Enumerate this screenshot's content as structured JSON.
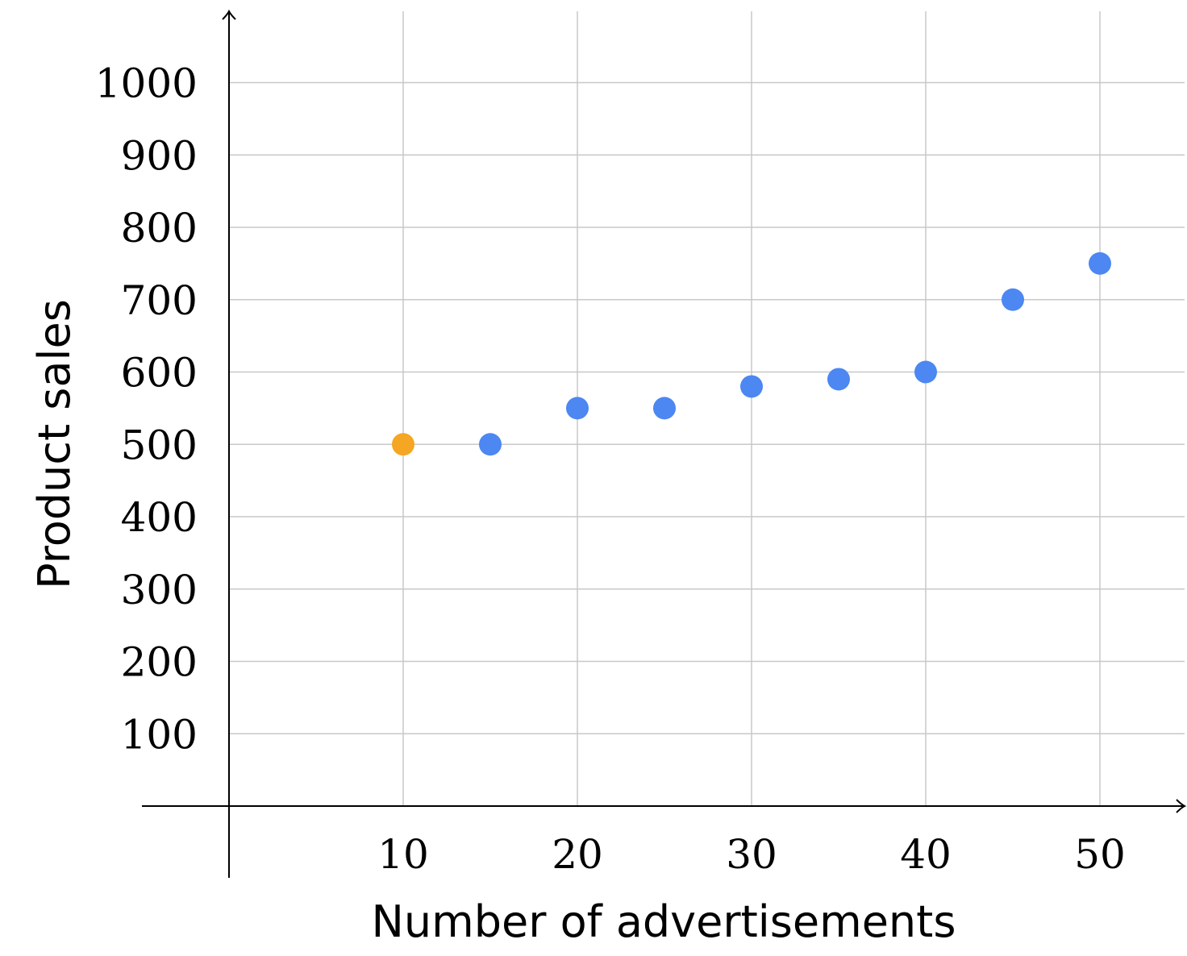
{
  "chart_data": {
    "type": "scatter",
    "title": "",
    "xlabel": "Number of advertisements",
    "ylabel": "Product sales",
    "xlim": [
      -5,
      55
    ],
    "ylim": [
      -100,
      1100
    ],
    "x_ticks": [
      10,
      20,
      30,
      40,
      50
    ],
    "y_ticks": [
      100,
      200,
      300,
      400,
      500,
      600,
      700,
      800,
      900,
      1000
    ],
    "x_tick_labels": [
      "10",
      "20",
      "30",
      "40",
      "50"
    ],
    "y_tick_labels": [
      "100",
      "200",
      "300",
      "400",
      "500",
      "600",
      "700",
      "800",
      "900",
      "1000"
    ],
    "grid": true,
    "legend": "none",
    "points": [
      {
        "x": 10,
        "y": 500,
        "color": "#f5a623"
      },
      {
        "x": 15,
        "y": 500,
        "color": "#4c87f2"
      },
      {
        "x": 20,
        "y": 550,
        "color": "#4c87f2"
      },
      {
        "x": 25,
        "y": 550,
        "color": "#4c87f2"
      },
      {
        "x": 30,
        "y": 580,
        "color": "#4c87f2"
      },
      {
        "x": 35,
        "y": 590,
        "color": "#4c87f2"
      },
      {
        "x": 40,
        "y": 600,
        "color": "#4c87f2"
      },
      {
        "x": 45,
        "y": 700,
        "color": "#4c87f2"
      },
      {
        "x": 50,
        "y": 750,
        "color": "#4c87f2"
      }
    ]
  }
}
